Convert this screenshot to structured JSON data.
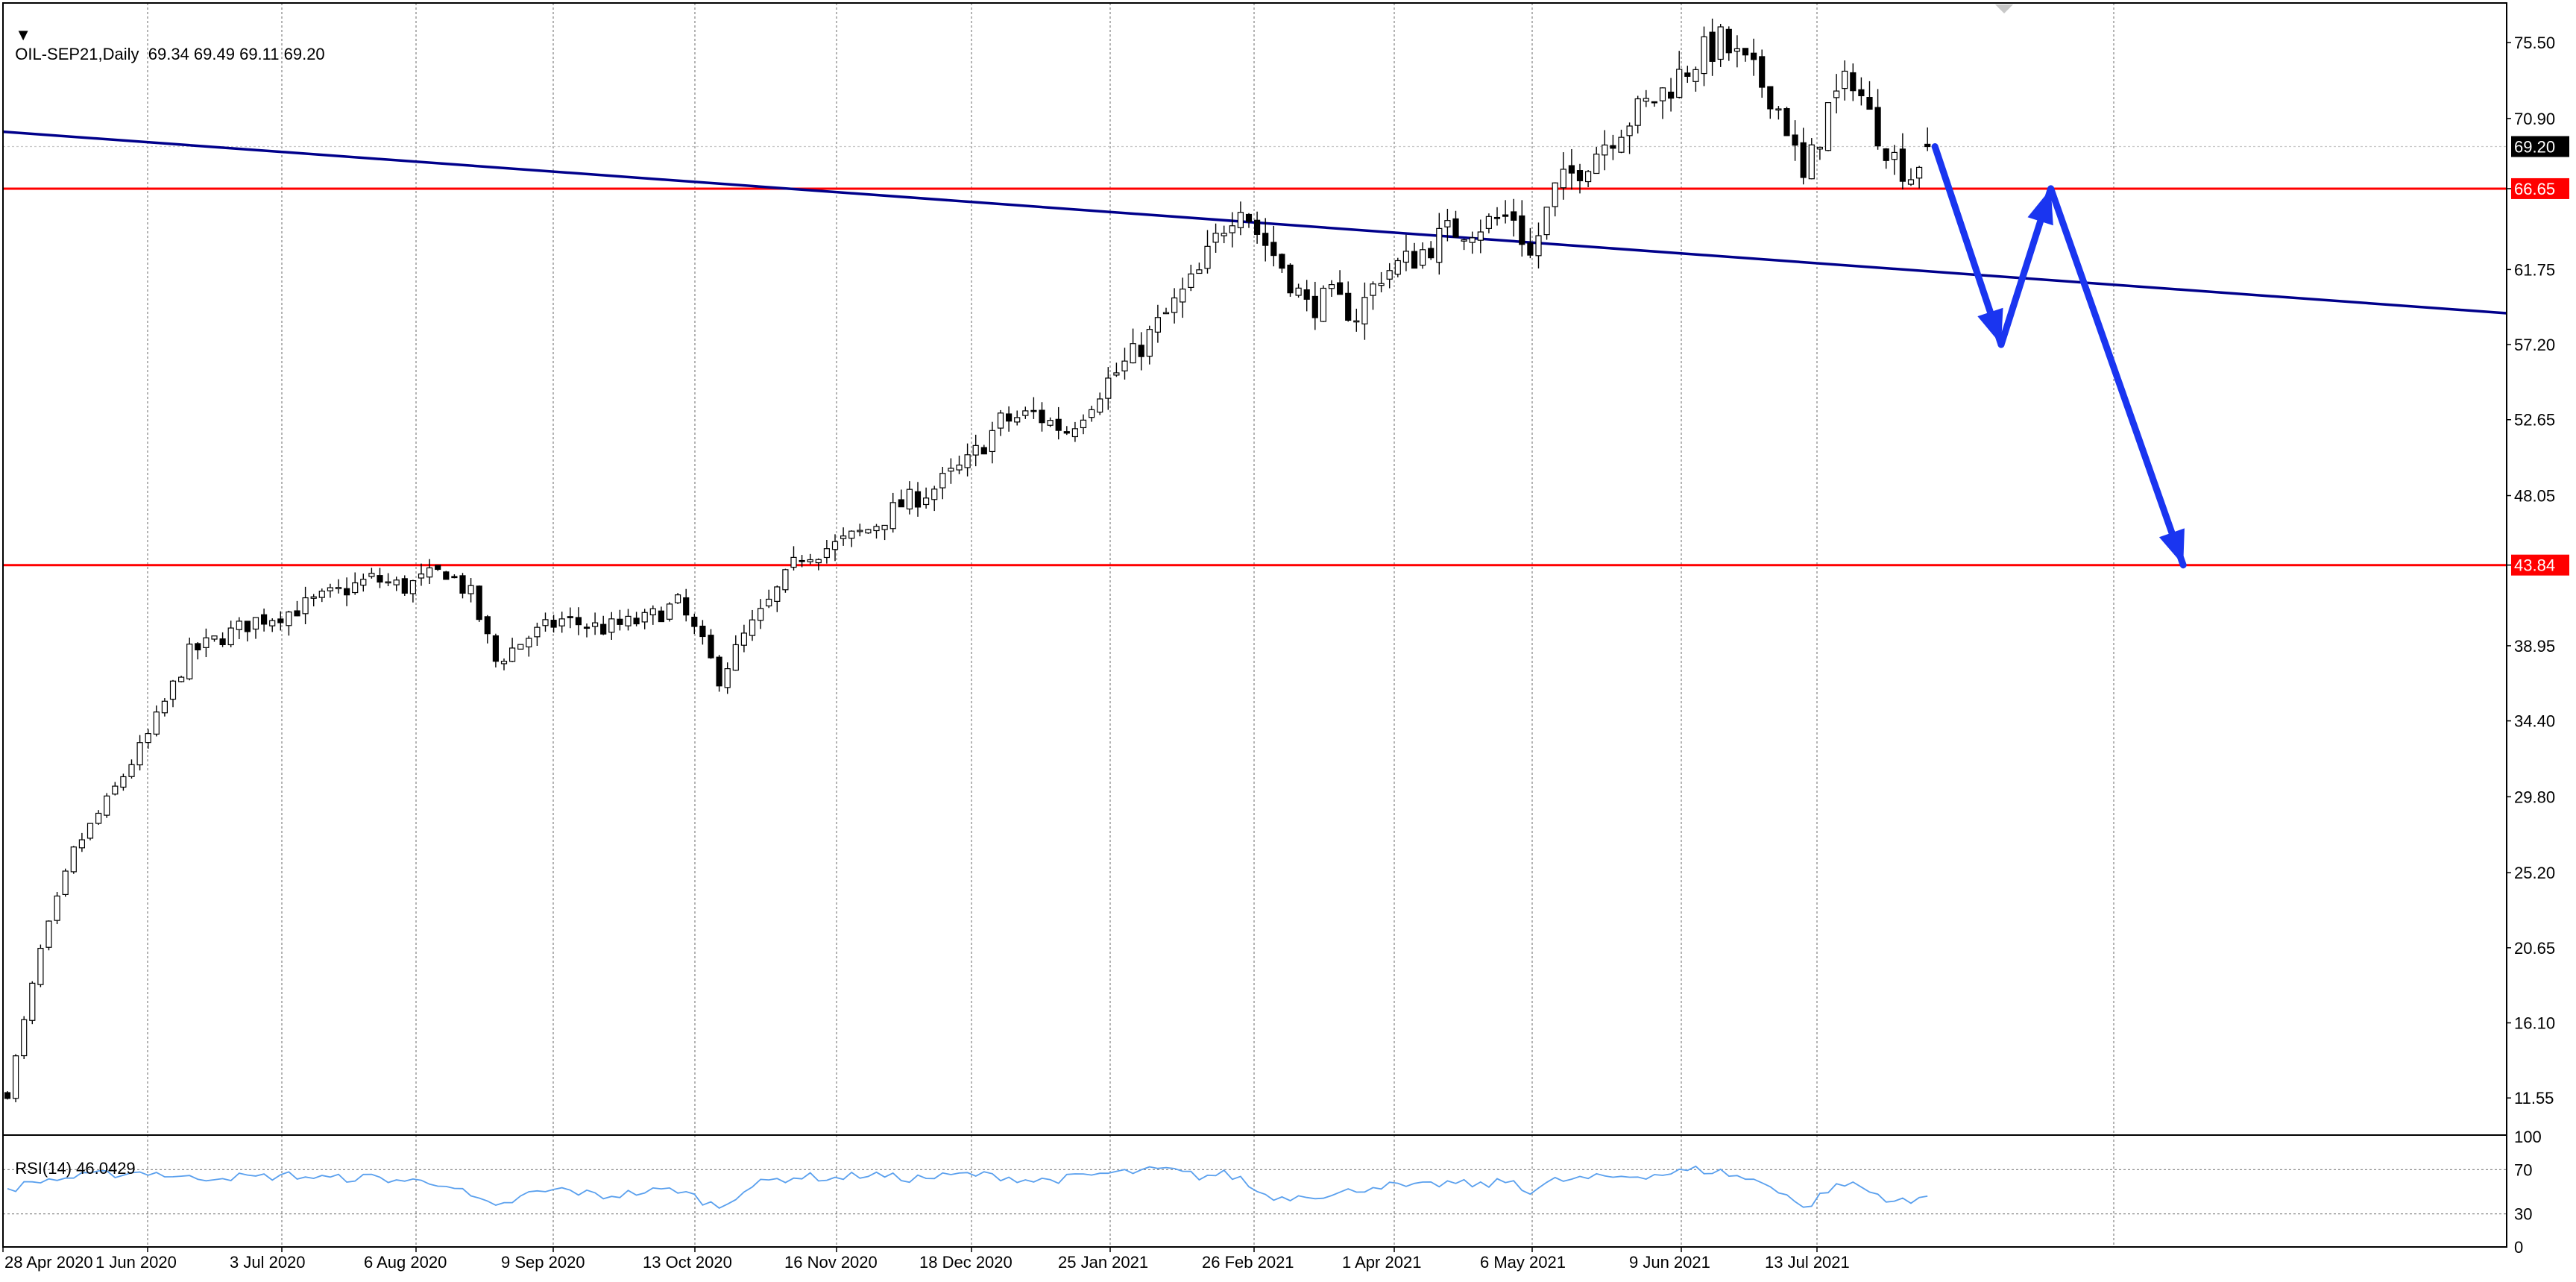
{
  "header": {
    "menu_glyph": "▼",
    "symbol_line": "OIL-SEP21,Daily  69.34 69.49 69.11 69.20",
    "rsi_line": "RSI(14) 46.0429"
  },
  "colors": {
    "background": "#ffffff",
    "grid": "#8a8a8a",
    "frame": "#000000",
    "bull_body": "#ffffff",
    "bear_body": "#000000",
    "support_resistance": "#ff0000",
    "trendline": "#00008b",
    "forecast_arrows": "#1a35f0",
    "rsi_line": "#5aa0ee",
    "price_tag": "#000000",
    "level_tag": "#ff0000"
  },
  "chart_data": [
    {
      "type": "candlestick",
      "symbol": "OIL-SEP21",
      "timeframe": "Daily",
      "last_ohlc": {
        "open": 69.34,
        "high": 69.49,
        "low": 69.11,
        "close": 69.2
      },
      "ylim": [
        9.3,
        77.9
      ],
      "y_ticks": [
        "75.50",
        "70.90",
        "66.65",
        "61.75",
        "57.20",
        "52.65",
        "48.05",
        "43.84",
        "38.95",
        "34.40",
        "29.80",
        "25.20",
        "20.65",
        "16.10",
        "11.55"
      ],
      "x_ticks": [
        "28 Apr 2020",
        "1 Jun 2020",
        "3 Jul 2020",
        "6 Aug 2020",
        "9 Sep 2020",
        "13 Oct 2020",
        "16 Nov 2020",
        "18 Dec 2020",
        "25 Jan 2021",
        "26 Feb 2021",
        "1 Apr 2021",
        "6 May 2021",
        "9 Jun 2021",
        "13 Jul 2021"
      ],
      "price_path": [
        [
          0,
          11.8
        ],
        [
          4,
          20.5
        ],
        [
          8,
          26.5
        ],
        [
          12,
          29.5
        ],
        [
          17,
          33.5
        ],
        [
          22,
          38.5
        ],
        [
          26,
          39.5
        ],
        [
          30,
          40.5
        ],
        [
          34,
          41.0
        ],
        [
          39,
          42.0
        ],
        [
          44,
          43.0
        ],
        [
          48,
          42.5
        ],
        [
          53,
          43.5
        ],
        [
          56,
          42.0
        ],
        [
          59,
          38.0
        ],
        [
          63,
          39.5
        ],
        [
          67,
          40.5
        ],
        [
          72,
          40.0
        ],
        [
          77,
          40.5
        ],
        [
          81,
          41.5
        ],
        [
          84,
          39.0
        ],
        [
          86,
          37.0
        ],
        [
          89,
          39.5
        ],
        [
          92,
          41.5
        ],
        [
          96,
          44.5
        ],
        [
          100,
          45.0
        ],
        [
          104,
          46.0
        ],
        [
          108,
          47.5
        ],
        [
          112,
          48.5
        ],
        [
          116,
          50.0
        ],
        [
          120,
          52.5
        ],
        [
          124,
          53.0
        ],
        [
          128,
          52.0
        ],
        [
          132,
          54.5
        ],
        [
          136,
          56.5
        ],
        [
          140,
          59.0
        ],
        [
          144,
          61.5
        ],
        [
          147,
          64.5
        ],
        [
          149,
          66.0
        ],
        [
          151,
          64.0
        ],
        [
          154,
          62.0
        ],
        [
          157,
          59.5
        ],
        [
          160,
          60.0
        ],
        [
          163,
          59.0
        ],
        [
          166,
          61.5
        ],
        [
          170,
          62.5
        ],
        [
          174,
          64.0
        ],
        [
          178,
          64.5
        ],
        [
          182,
          65.0
        ],
        [
          184,
          62.5
        ],
        [
          187,
          66.5
        ],
        [
          191,
          68.5
        ],
        [
          195,
          70.5
        ],
        [
          200,
          72.5
        ],
        [
          204,
          74.5
        ],
        [
          207,
          75.5
        ],
        [
          210,
          74.0
        ],
        [
          213,
          72.5
        ],
        [
          215,
          70.5
        ],
        [
          217,
          67.0
        ],
        [
          220,
          71.5
        ],
        [
          223,
          73.5
        ],
        [
          225,
          71.0
        ],
        [
          228,
          68.5
        ],
        [
          230,
          67.5
        ],
        [
          232,
          69.2
        ]
      ],
      "horizontal_levels": [
        {
          "price": 66.65,
          "label": "66.65"
        },
        {
          "price": 43.84,
          "label": "43.84"
        }
      ],
      "current_price": {
        "price": 69.2,
        "label": "69.20"
      },
      "trendline": {
        "from": [
          0,
          70.1
        ],
        "to": [
          290,
          59.1
        ]
      },
      "forecast_path": [
        [
          232,
          69.2
        ],
        [
          240,
          57.2
        ],
        [
          246,
          66.65
        ],
        [
          262,
          43.84
        ]
      ]
    },
    {
      "type": "line",
      "indicator": "RSI(14)",
      "value": 46.0429,
      "ylim": [
        0,
        100
      ],
      "y_ticks": [
        "100",
        "70",
        "30",
        "0"
      ],
      "levels": [
        70,
        30
      ],
      "values": [
        [
          0,
          52
        ],
        [
          4,
          60
        ],
        [
          8,
          63
        ],
        [
          12,
          66
        ],
        [
          17,
          68
        ],
        [
          22,
          62
        ],
        [
          26,
          64
        ],
        [
          30,
          63
        ],
        [
          34,
          65
        ],
        [
          39,
          62
        ],
        [
          44,
          63
        ],
        [
          48,
          60
        ],
        [
          53,
          58
        ],
        [
          56,
          45
        ],
        [
          59,
          35
        ],
        [
          63,
          48
        ],
        [
          67,
          52
        ],
        [
          72,
          46
        ],
        [
          77,
          50
        ],
        [
          81,
          52
        ],
        [
          84,
          42
        ],
        [
          86,
          36
        ],
        [
          89,
          52
        ],
        [
          92,
          60
        ],
        [
          96,
          64
        ],
        [
          100,
          62
        ],
        [
          104,
          66
        ],
        [
          108,
          62
        ],
        [
          112,
          63
        ],
        [
          116,
          66
        ],
        [
          120,
          64
        ],
        [
          124,
          60
        ],
        [
          128,
          62
        ],
        [
          132,
          66
        ],
        [
          136,
          68
        ],
        [
          140,
          70
        ],
        [
          144,
          64
        ],
        [
          147,
          66
        ],
        [
          149,
          62
        ],
        [
          151,
          50
        ],
        [
          154,
          44
        ],
        [
          157,
          48
        ],
        [
          160,
          46
        ],
        [
          163,
          52
        ],
        [
          166,
          56
        ],
        [
          170,
          54
        ],
        [
          174,
          58
        ],
        [
          178,
          56
        ],
        [
          182,
          60
        ],
        [
          184,
          50
        ],
        [
          187,
          60
        ],
        [
          191,
          62
        ],
        [
          195,
          64
        ],
        [
          200,
          66
        ],
        [
          204,
          70
        ],
        [
          207,
          68
        ],
        [
          210,
          62
        ],
        [
          213,
          56
        ],
        [
          215,
          48
        ],
        [
          217,
          34
        ],
        [
          220,
          52
        ],
        [
          223,
          58
        ],
        [
          225,
          50
        ],
        [
          228,
          42
        ],
        [
          230,
          40
        ],
        [
          232,
          46
        ]
      ]
    }
  ]
}
